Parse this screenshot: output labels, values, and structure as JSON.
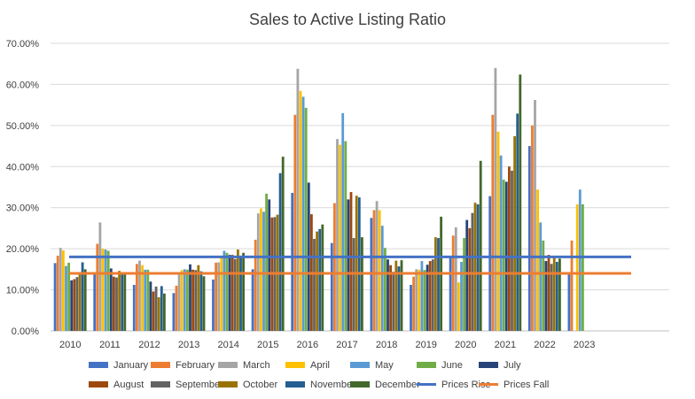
{
  "chart_data": {
    "type": "bar",
    "title": "Sales to Active Listing Ratio",
    "xlabel": "",
    "ylabel": "",
    "categories": [
      "2010",
      "2011",
      "2012",
      "2013",
      "2014",
      "2015",
      "2016",
      "2017",
      "2018",
      "2019",
      "2020",
      "2021",
      "2022",
      "2023"
    ],
    "ylim": [
      0,
      70
    ],
    "yticks": [
      "0.00%",
      "10.00%",
      "20.00%",
      "30.00%",
      "40.00%",
      "50.00%",
      "60.00%",
      "70.00%"
    ],
    "grid": "horizontal",
    "legend_position": "bottom",
    "series": [
      {
        "name": "January",
        "color": "#4472C4",
        "values": [
          16.5,
          14.3,
          11.2,
          9.2,
          12.5,
          15.0,
          33.6,
          21.4,
          27.5,
          11.2,
          18.1,
          32.8,
          45.0,
          14.0
        ]
      },
      {
        "name": "February",
        "color": "#ED7D31",
        "values": [
          18.3,
          21.2,
          16.3,
          11.0,
          16.6,
          22.2,
          52.6,
          31.1,
          29.4,
          13.2,
          23.2,
          52.6,
          50.0,
          22.0
        ]
      },
      {
        "name": "March",
        "color": "#A5A5A5",
        "values": [
          20.2,
          26.4,
          17.1,
          13.8,
          16.7,
          28.6,
          63.8,
          46.7,
          31.6,
          15.0,
          25.2,
          64.0,
          56.2,
          null
        ]
      },
      {
        "name": "April",
        "color": "#FFC000",
        "values": [
          19.6,
          20.0,
          16.0,
          14.8,
          18.0,
          29.8,
          58.4,
          45.3,
          29.4,
          14.9,
          11.8,
          48.5,
          34.4,
          30.8
        ]
      },
      {
        "name": "May",
        "color": "#5B9BD5",
        "values": [
          15.8,
          19.8,
          14.9,
          15.0,
          19.5,
          29.0,
          57.0,
          53.0,
          25.6,
          17.0,
          16.8,
          42.7,
          26.4,
          34.4
        ]
      },
      {
        "name": "June",
        "color": "#70AD47",
        "values": [
          16.6,
          19.5,
          14.9,
          14.9,
          19.0,
          33.4,
          54.3,
          46.2,
          20.2,
          14.8,
          22.6,
          36.8,
          22.0,
          30.8
        ]
      },
      {
        "name": "July",
        "color": "#264478",
        "values": [
          12.3,
          15.2,
          12.0,
          16.2,
          18.5,
          32.0,
          36.1,
          32.0,
          17.4,
          16.1,
          27.0,
          36.3,
          17.0,
          null
        ]
      },
      {
        "name": "August",
        "color": "#9E480E",
        "values": [
          12.6,
          13.2,
          9.6,
          14.9,
          18.5,
          27.6,
          28.4,
          33.8,
          16.0,
          17.0,
          25.0,
          40.0,
          18.5,
          null
        ]
      },
      {
        "name": "September",
        "color": "#636363",
        "values": [
          13.1,
          13.0,
          10.8,
          14.8,
          17.5,
          27.7,
          22.4,
          22.6,
          14.4,
          17.4,
          28.7,
          39.0,
          16.3,
          null
        ]
      },
      {
        "name": "October",
        "color": "#997300",
        "values": [
          14.1,
          14.6,
          8.2,
          16.0,
          19.8,
          28.3,
          24.2,
          32.9,
          17.1,
          22.8,
          31.2,
          47.4,
          18.2,
          null
        ]
      },
      {
        "name": "November",
        "color": "#255E91",
        "values": [
          16.7,
          13.8,
          10.9,
          14.5,
          17.8,
          38.4,
          24.8,
          32.5,
          15.7,
          22.6,
          30.8,
          52.9,
          16.8,
          null
        ]
      },
      {
        "name": "December",
        "color": "#43682B",
        "values": [
          15.0,
          14.2,
          9.1,
          13.3,
          19.0,
          42.4,
          25.9,
          22.8,
          17.2,
          27.8,
          41.4,
          62.4,
          17.6,
          null
        ]
      }
    ],
    "reference_lines": [
      {
        "name": "Prices Rise",
        "color": "#4472C4",
        "value": 18.0
      },
      {
        "name": "Prices Fall",
        "color": "#ED7D31",
        "value": 14.0
      }
    ]
  }
}
